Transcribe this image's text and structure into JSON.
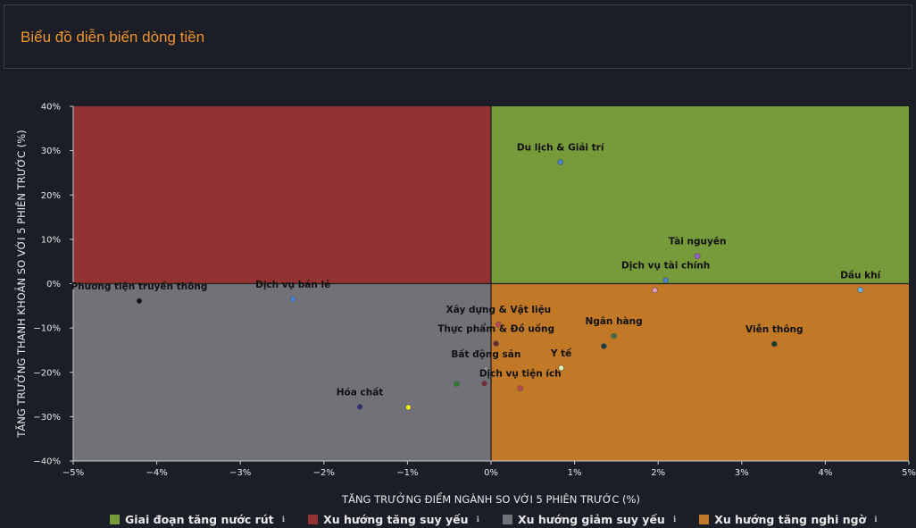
{
  "header": {
    "title": "Biểu đồ diễn biến dòng tiền"
  },
  "chart_data": {
    "type": "scatter",
    "title": "Biểu đồ diễn biến dòng tiền",
    "xlabel": "TĂNG TRƯỞNG ĐIỂM NGÀNH SO VỚI 5 PHIÊN TRƯỚC (%)",
    "ylabel": "TĂNG TRƯỞNG THANH KHOẢN SO VỚI 5 PHIÊN TRƯỚC (%)",
    "xlim": [
      -5,
      5
    ],
    "ylim": [
      -40,
      40
    ],
    "x_ticks": [
      -5,
      -4,
      -3,
      -2,
      -1,
      0,
      1,
      2,
      3,
      4,
      5
    ],
    "y_ticks": [
      -40,
      -30,
      -20,
      -10,
      0,
      10,
      20,
      30,
      40
    ],
    "x_tick_labels": [
      "−5%",
      "−4%",
      "−3%",
      "−2%",
      "−1%",
      "0%",
      "1%",
      "2%",
      "3%",
      "4%",
      "5%"
    ],
    "y_tick_labels": [
      "−40%",
      "−30%",
      "−20%",
      "−10%",
      "0%",
      "10%",
      "20%",
      "30%",
      "40%"
    ],
    "quadrants": [
      {
        "name": "Giai đoạn tăng nước rút",
        "color": "#779a3a",
        "x": [
          0,
          5
        ],
        "y": [
          0,
          40
        ]
      },
      {
        "name": "Xu hướng tăng suy yếu",
        "color": "#923232",
        "x": [
          -5,
          0
        ],
        "y": [
          0,
          40
        ]
      },
      {
        "name": "Xu hướng giảm suy yếu",
        "color": "#717278",
        "x": [
          -5,
          0
        ],
        "y": [
          -40,
          0
        ]
      },
      {
        "name": "Xu hướng tăng nghi ngờ",
        "color": "#c17827",
        "x": [
          0,
          5
        ],
        "y": [
          -40,
          0
        ]
      }
    ],
    "points": [
      {
        "label": "Du lịch & Giải trí",
        "x": 0.83,
        "y": 27.4,
        "color": "#4a7fd6"
      },
      {
        "label": "Tài nguyên",
        "x": 2.47,
        "y": 6.2,
        "color": "#9a5fd0"
      },
      {
        "label": "Dịch vụ tài chính",
        "x": 2.09,
        "y": 0.8,
        "color": "#4a7fd6"
      },
      {
        "label": "",
        "x": 1.96,
        "y": -1.5,
        "color": "#e39bb8"
      },
      {
        "label": "Dầu khí",
        "x": 4.42,
        "y": -1.4,
        "color": "#6ab7f0"
      },
      {
        "label": "Phương tiện truyền thông",
        "x": -4.21,
        "y": -3.9,
        "color": "#111111"
      },
      {
        "label": "Dịch vụ bán lẻ",
        "x": -2.37,
        "y": -3.5,
        "color": "#4a7fd6"
      },
      {
        "label": "Xây dựng & Vật liệu",
        "x": 0.09,
        "y": -9.2,
        "color": "#c04a4a"
      },
      {
        "label": "Thực phẩm & Đồ uống",
        "x": 0.06,
        "y": -13.5,
        "color": "#6b2a2a"
      },
      {
        "label": "Ngân hàng",
        "x": 1.47,
        "y": -11.8,
        "color": "#3e6e3e"
      },
      {
        "label": "",
        "x": 1.35,
        "y": -14.1,
        "color": "#1e3a3a"
      },
      {
        "label": "Viễn thông",
        "x": 3.39,
        "y": -13.6,
        "color": "#1b3b1b"
      },
      {
        "label": "Bất động sản",
        "x": -0.06,
        "y": -19.2,
        "color": "#8a8a8a"
      },
      {
        "label": "Y tế",
        "x": 0.84,
        "y": -19.0,
        "color": "#e8f0b0"
      },
      {
        "label": "Dịch vụ tiện ích",
        "x": 0.35,
        "y": -23.6,
        "color": "#c04a4a"
      },
      {
        "label": "",
        "x": -0.41,
        "y": -22.6,
        "color": "#2e7a2e"
      },
      {
        "label": "",
        "x": -0.08,
        "y": -22.5,
        "color": "#7a2a3a"
      },
      {
        "label": "Hóa chất",
        "x": -1.57,
        "y": -27.8,
        "color": "#2b2b7a"
      },
      {
        "label": "",
        "x": -0.99,
        "y": -27.9,
        "color": "#f2f21a"
      }
    ],
    "legend": [
      {
        "label": "Giai đoạn tăng nước rút",
        "color": "#779a3a",
        "icon": "info-icon"
      },
      {
        "label": "Xu hướng tăng suy yếu",
        "color": "#923232",
        "icon": "info-icon"
      },
      {
        "label": "Xu hướng giảm suy yếu",
        "color": "#717278",
        "icon": "info-icon"
      },
      {
        "label": "Xu hướng tăng nghi ngờ",
        "color": "#c17827",
        "icon": "info-icon"
      }
    ],
    "legend_position": "bottom",
    "grid": false
  }
}
